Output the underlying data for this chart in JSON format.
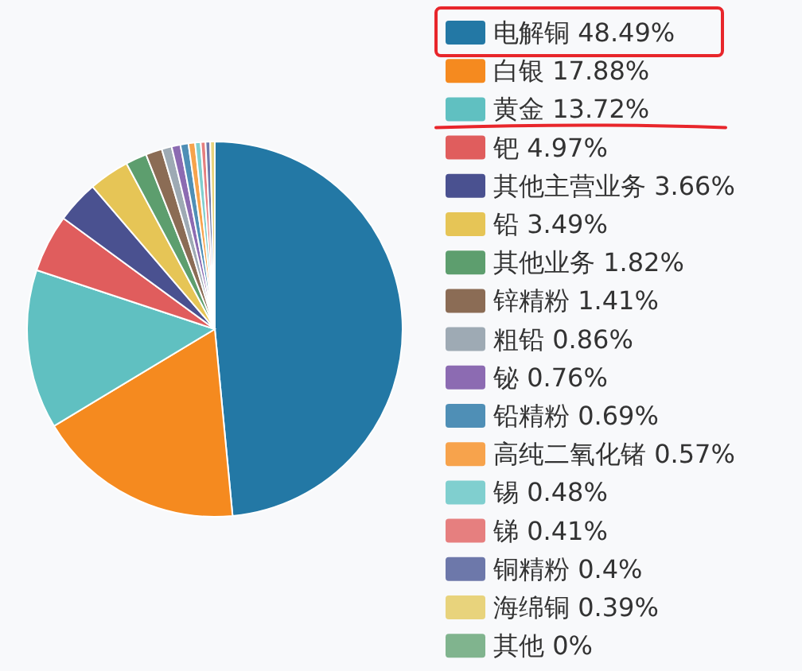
{
  "chart_data": {
    "type": "pie",
    "categories": [
      "电解铜",
      "白银",
      "黄金",
      "钯",
      "其他主营业务",
      "铅",
      "其他业务",
      "锌精粉",
      "粗铅",
      "铋",
      "铅精粉",
      "高纯二氧化锗",
      "锡",
      "锑",
      "铜精粉",
      "海绵铜",
      "其他"
    ],
    "values": [
      48.49,
      17.88,
      13.72,
      4.97,
      3.66,
      3.49,
      1.82,
      1.41,
      0.86,
      0.76,
      0.69,
      0.57,
      0.48,
      0.41,
      0.4,
      0.39,
      0
    ],
    "value_labels": [
      "48.49%",
      "17.88%",
      "13.72%",
      "4.97%",
      "3.66%",
      "3.49%",
      "1.82%",
      "1.41%",
      "0.86%",
      "0.76%",
      "0.69%",
      "0.57%",
      "0.48%",
      "0.41%",
      "0.4%",
      "0.39%",
      "0%"
    ],
    "colors": [
      "#2378a5",
      "#f58a1f",
      "#60c0c1",
      "#e05d5d",
      "#4a5190",
      "#e6c556",
      "#5d9e6e",
      "#8b6c55",
      "#9eaab4",
      "#8c6bb2",
      "#4f8fb6",
      "#f7a34c",
      "#80cfcf",
      "#e67f7f",
      "#6d78aa",
      "#e8d37c",
      "#80b48e"
    ],
    "legend": "right"
  }
}
